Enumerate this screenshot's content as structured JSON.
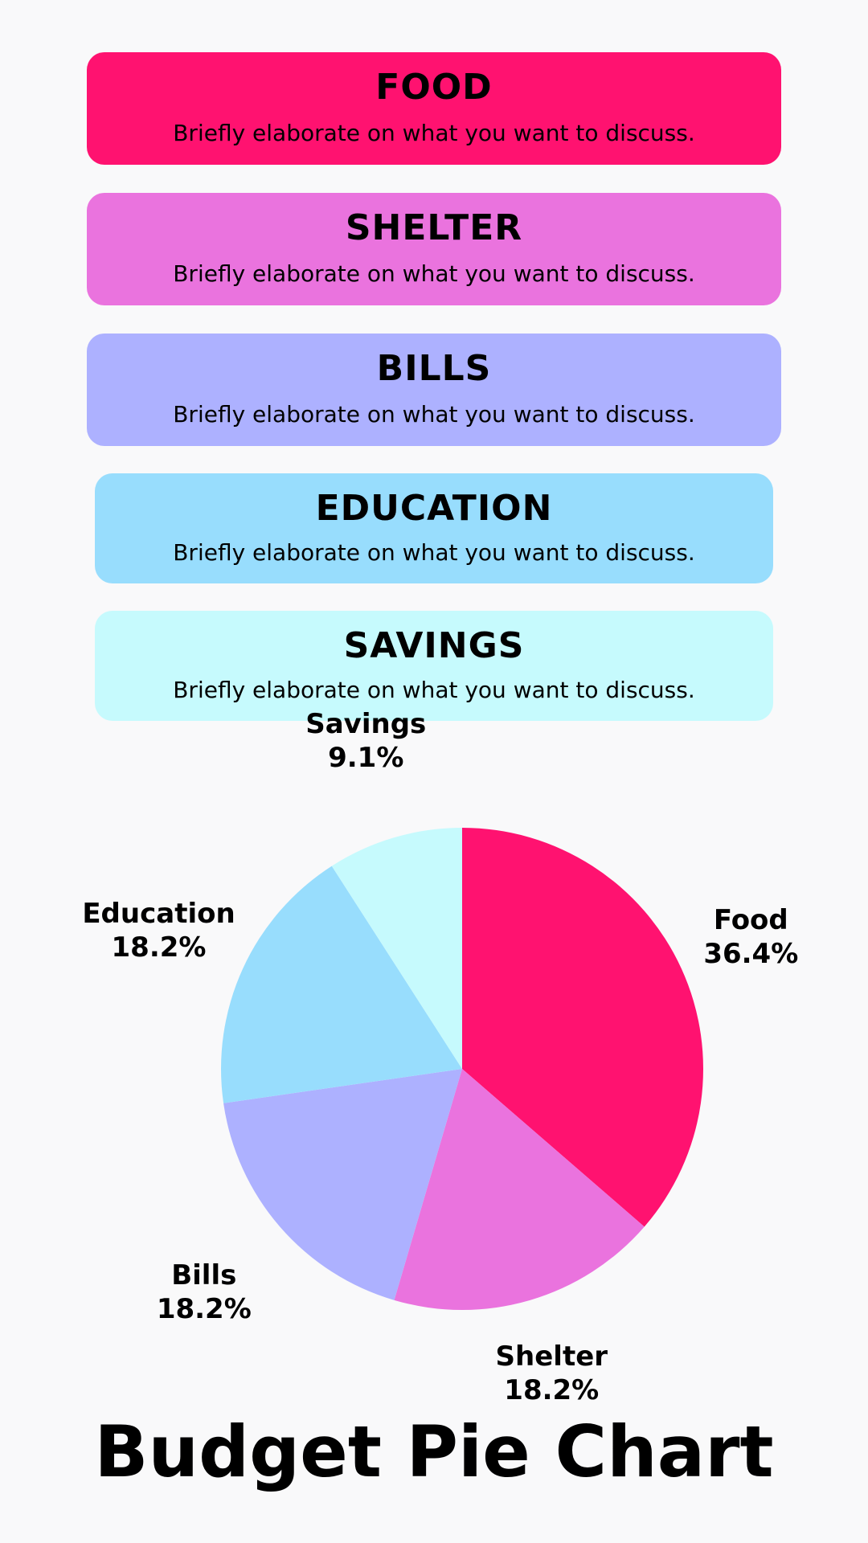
{
  "cards": [
    {
      "title": "FOOD",
      "description": "Briefly elaborate on what you want to discuss.",
      "color": "#ff1270"
    },
    {
      "title": "SHELTER",
      "description": "Briefly elaborate on what you want to discuss.",
      "color": "#ea73de"
    },
    {
      "title": "BILLS",
      "description": "Briefly elaborate on what you want to discuss.",
      "color": "#adb1ff"
    },
    {
      "title": "EDUCATION",
      "description": "Briefly elaborate on what you want to discuss.",
      "color": "#98ddfd"
    },
    {
      "title": "SAVINGS",
      "description": "Briefly elaborate on what you want to discuss.",
      "color": "#c6fafd"
    }
  ],
  "chart_data": {
    "type": "pie",
    "title": "Budget Pie Chart",
    "slices": [
      {
        "label": "Food",
        "value": 36.4,
        "value_label": "36.4%",
        "color": "#ff1270"
      },
      {
        "label": "Shelter",
        "value": 18.2,
        "value_label": "18.2%",
        "color": "#ea73de"
      },
      {
        "label": "Bills",
        "value": 18.2,
        "value_label": "18.2%",
        "color": "#adb1ff"
      },
      {
        "label": "Education",
        "value": 18.2,
        "value_label": "18.2%",
        "color": "#98ddfd"
      },
      {
        "label": "Savings",
        "value": 9.1,
        "value_label": "9.1%",
        "color": "#c6fafd"
      }
    ]
  }
}
